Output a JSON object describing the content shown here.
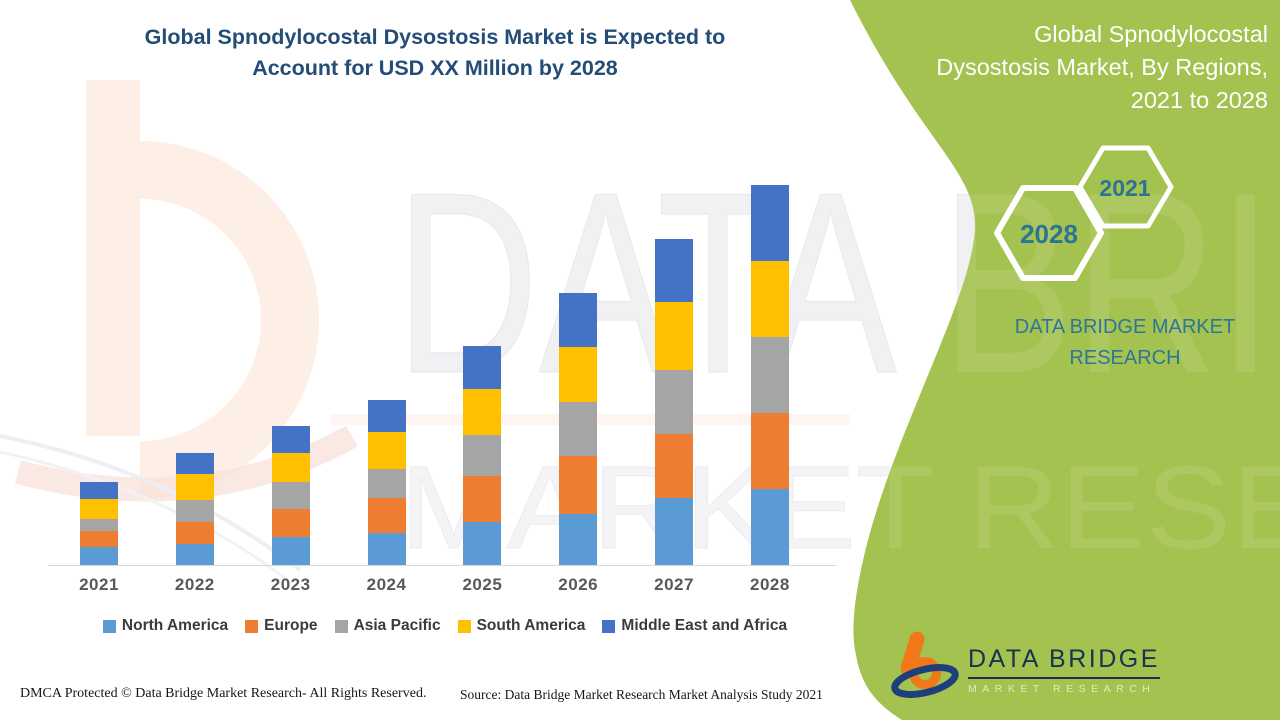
{
  "header": {
    "title_line1": "Global Spnodylocostal Dysostosis Market is Expected to",
    "title_line2": "Account for USD XX Million by 2028"
  },
  "side_panel": {
    "title_lines": [
      "Global Spnodylocostal",
      "Dysostosis Market, By Regions,",
      "2021 to 2028"
    ],
    "hexagons": [
      {
        "label": "2028"
      },
      {
        "label": "2021"
      }
    ],
    "brand_line1": "DATA BRIDGE MARKET",
    "brand_line2": "RESEARCH",
    "panel_color": "#a4c24f",
    "teal_text_color": "#2e7599"
  },
  "chart_data": {
    "type": "bar",
    "stacked": true,
    "title": "Global Spnodylocostal Dysostosis Market, By Regions, 2021 to 2028",
    "units": "USD Million (values shown as XX - undisclosed)",
    "xlabel": "",
    "ylabel": "",
    "grid": false,
    "legend_position": "bottom",
    "categories": [
      "2021",
      "2022",
      "2023",
      "2024",
      "2025",
      "2026",
      "2027",
      "2028"
    ],
    "series": [
      {
        "name": "North America",
        "color": "#5B9BD5",
        "values": [
          18,
          21,
          28,
          32,
          43,
          51,
          67,
          76
        ]
      },
      {
        "name": "Europe",
        "color": "#ED7D31",
        "values": [
          16,
          22,
          28,
          35,
          46,
          58,
          64,
          76
        ]
      },
      {
        "name": "Asia Pacific",
        "color": "#A5A5A5",
        "values": [
          12,
          22,
          27,
          29,
          41,
          54,
          64,
          76
        ]
      },
      {
        "name": "South America",
        "color": "#FFC000",
        "values": [
          20,
          26,
          29,
          37,
          46,
          55,
          68,
          76
        ]
      },
      {
        "name": "Middle East and Africa",
        "color": "#4472C4",
        "values": [
          17,
          21,
          27,
          32,
          43,
          54,
          63,
          76
        ]
      }
    ],
    "totals_relative": [
      83,
      112,
      139,
      165,
      219,
      272,
      326,
      380
    ]
  },
  "legend": {
    "items": [
      "North America",
      "Europe",
      "Asia Pacific",
      "South America",
      "Middle East and Africa"
    ]
  },
  "watermark": {
    "text1": "DATA BRIDGE",
    "text2": "MARKET RESEARCH"
  },
  "logo": {
    "name": "DATA BRIDGE",
    "subtitle": "MARKET RESEARCH"
  },
  "footer": {
    "dmca": "DMCA Protected © Data Bridge Market Research- All Rights Reserved.",
    "source": "Source: Data Bridge Market Research Market Analysis Study 2021"
  }
}
